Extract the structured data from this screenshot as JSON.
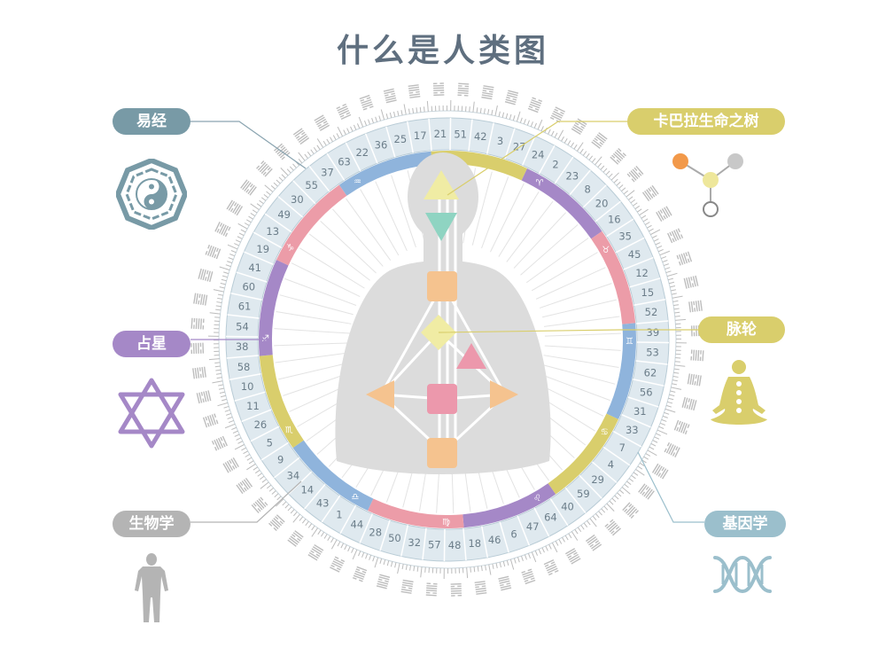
{
  "title": "什么是人类图",
  "labels": {
    "iching": "易经",
    "astrology": "占星",
    "biology": "生物学",
    "kabbalah": "卡巴拉生命之树",
    "chakra": "脉轮",
    "genetics": "基因学"
  },
  "colors": {
    "iching": "#789aa6",
    "astrology": "#a588c7",
    "biology": "#b4b4b4",
    "kabbalah": "#d9ce6c",
    "chakra": "#d9ce6c",
    "genetics": "#9bbfcc"
  },
  "gates": [
    "41",
    "19",
    "13",
    "49",
    "30",
    "55",
    "37",
    "63",
    "22",
    "36",
    "25",
    "17",
    "21",
    "51",
    "42",
    "3",
    "27",
    "24",
    "2",
    "23",
    "8",
    "20",
    "16",
    "35",
    "45",
    "12",
    "15",
    "52",
    "39",
    "53",
    "62",
    "56",
    "31",
    "33",
    "7",
    "4",
    "29",
    "59",
    "40",
    "64",
    "47",
    "6",
    "46",
    "18",
    "48",
    "57",
    "32",
    "50",
    "28",
    "44",
    "1",
    "43",
    "14",
    "34",
    "9",
    "5",
    "26",
    "11",
    "10",
    "58",
    "38",
    "54",
    "61",
    "60"
  ],
  "zodiac_ring": [
    {
      "color": "#d9ce6c"
    },
    {
      "color": "#a588c7"
    },
    {
      "color": "#ec9ca8"
    },
    {
      "color": "#8fb4dc"
    },
    {
      "color": "#d9ce6c"
    },
    {
      "color": "#a588c7"
    },
    {
      "color": "#ec9ca8"
    },
    {
      "color": "#8fb4dc"
    },
    {
      "color": "#d9ce6c"
    },
    {
      "color": "#a588c7"
    },
    {
      "color": "#ec9ca8"
    },
    {
      "color": "#8fb4dc"
    }
  ],
  "zodiac_glyphs": [
    "♓",
    "♈",
    "♉",
    "♊",
    "♋",
    "♌",
    "♍",
    "♎",
    "♏",
    "♐",
    "♑",
    "♒"
  ],
  "icons": [
    "yin-yang-icon",
    "star-of-david-icon",
    "human-figure-icon",
    "tree-of-life-icon",
    "meditation-icon",
    "dna-icon"
  ]
}
